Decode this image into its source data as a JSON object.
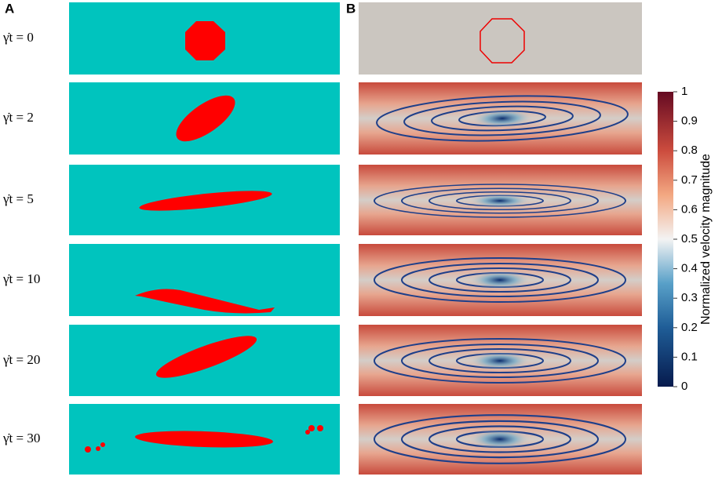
{
  "panels": [
    "A",
    "B"
  ],
  "rows": [
    "γ̇t = 0",
    "γ̇t = 2",
    "γ̇t = 5",
    "γ̇t = 10",
    "γ̇t = 20",
    "γ̇t = 30"
  ],
  "colorbar": {
    "label": "Normalized velocity magnitude",
    "range": [
      0,
      1
    ],
    "ticks": [
      0,
      0.1,
      0.2,
      0.3,
      0.4,
      0.5,
      0.6,
      0.7,
      0.8,
      0.9,
      1
    ]
  }
}
